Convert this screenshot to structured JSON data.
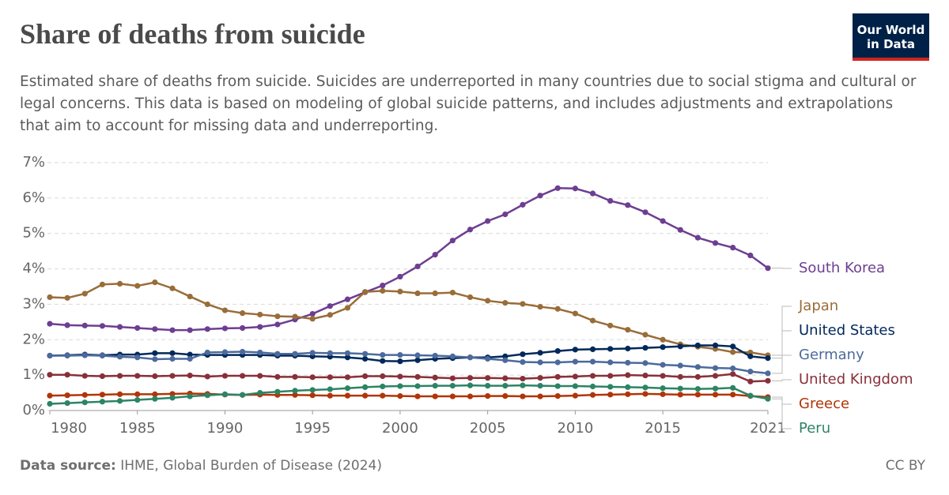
{
  "chart_data": {
    "type": "line",
    "title": "Share of deaths from suicide",
    "subtitle": "Estimated share of deaths from suicide. Suicides are underreported in many countries due to social stigma and cultural or legal concerns. This data is based on modeling of global suicide patterns, and includes adjustments and extrapolations that aim to account for missing data and underreporting.",
    "logo": [
      "Our World",
      "in Data"
    ],
    "source_label": "Data source:",
    "source": "IHME, Global Burden of Disease (2024)",
    "license": "CC BY",
    "x": [
      1980,
      1981,
      1982,
      1983,
      1984,
      1985,
      1986,
      1987,
      1988,
      1989,
      1990,
      1991,
      1992,
      1993,
      1994,
      1995,
      1996,
      1997,
      1998,
      1999,
      2000,
      2001,
      2002,
      2003,
      2004,
      2005,
      2006,
      2007,
      2008,
      2009,
      2010,
      2011,
      2012,
      2013,
      2014,
      2015,
      2016,
      2017,
      2018,
      2019,
      2020,
      2021
    ],
    "xlim": [
      1980,
      2021
    ],
    "xticks": [
      1980,
      1985,
      1990,
      1995,
      2000,
      2005,
      2010,
      2015,
      2021
    ],
    "ylim": [
      0,
      7
    ],
    "yticks": [
      {
        "value": 0,
        "label": "0%"
      },
      {
        "value": 1,
        "label": "1%"
      },
      {
        "value": 2,
        "label": "2%"
      },
      {
        "value": 3,
        "label": "3%"
      },
      {
        "value": 4,
        "label": "4%"
      },
      {
        "value": 5,
        "label": "5%"
      },
      {
        "value": 6,
        "label": "6%"
      },
      {
        "value": 7,
        "label": "7%"
      }
    ],
    "grid": true,
    "series": [
      {
        "name": "South Korea",
        "color": "#6d3e91",
        "values": [
          2.45,
          2.41,
          2.4,
          2.39,
          2.36,
          2.33,
          2.3,
          2.27,
          2.27,
          2.3,
          2.32,
          2.33,
          2.36,
          2.43,
          2.57,
          2.73,
          2.95,
          3.14,
          3.34,
          3.53,
          3.78,
          4.07,
          4.4,
          4.8,
          5.11,
          5.35,
          5.54,
          5.81,
          6.07,
          6.28,
          6.27,
          6.13,
          5.92,
          5.8,
          5.6,
          5.35,
          5.1,
          4.88,
          4.73,
          4.6,
          4.38,
          4.02
        ]
      },
      {
        "name": "Japan",
        "color": "#996d39",
        "values": [
          3.2,
          3.18,
          3.3,
          3.56,
          3.58,
          3.52,
          3.62,
          3.45,
          3.22,
          3.0,
          2.83,
          2.75,
          2.71,
          2.66,
          2.65,
          2.59,
          2.7,
          2.9,
          3.35,
          3.38,
          3.36,
          3.31,
          3.31,
          3.33,
          3.2,
          3.1,
          3.04,
          3.01,
          2.93,
          2.87,
          2.74,
          2.54,
          2.4,
          2.28,
          2.14,
          2.0,
          1.87,
          1.8,
          1.74,
          1.65,
          1.64,
          1.56
        ]
      },
      {
        "name": "United States",
        "color": "#00295b",
        "values": [
          1.55,
          1.56,
          1.58,
          1.56,
          1.58,
          1.58,
          1.62,
          1.62,
          1.58,
          1.57,
          1.57,
          1.57,
          1.57,
          1.55,
          1.55,
          1.53,
          1.52,
          1.5,
          1.46,
          1.4,
          1.39,
          1.42,
          1.46,
          1.48,
          1.5,
          1.5,
          1.53,
          1.59,
          1.63,
          1.68,
          1.72,
          1.73,
          1.74,
          1.75,
          1.77,
          1.79,
          1.81,
          1.84,
          1.84,
          1.81,
          1.53,
          1.48
        ]
      },
      {
        "name": "Germany",
        "color": "#4c6a9c",
        "values": [
          1.55,
          1.55,
          1.56,
          1.55,
          1.52,
          1.5,
          1.45,
          1.46,
          1.46,
          1.64,
          1.65,
          1.66,
          1.64,
          1.6,
          1.6,
          1.63,
          1.62,
          1.62,
          1.6,
          1.57,
          1.57,
          1.56,
          1.55,
          1.53,
          1.5,
          1.46,
          1.42,
          1.37,
          1.36,
          1.36,
          1.38,
          1.38,
          1.36,
          1.35,
          1.34,
          1.29,
          1.27,
          1.23,
          1.2,
          1.19,
          1.1,
          1.05
        ]
      },
      {
        "name": "United Kingdom",
        "color": "#883039",
        "values": [
          1.01,
          1.01,
          0.98,
          0.97,
          0.98,
          0.98,
          0.97,
          0.98,
          0.99,
          0.96,
          0.98,
          0.98,
          0.98,
          0.95,
          0.95,
          0.94,
          0.94,
          0.94,
          0.97,
          0.97,
          0.96,
          0.95,
          0.93,
          0.91,
          0.92,
          0.92,
          0.91,
          0.9,
          0.92,
          0.95,
          0.96,
          0.98,
          0.98,
          1.0,
          0.99,
          0.98,
          0.95,
          0.95,
          0.98,
          1.03,
          0.82,
          0.84
        ]
      },
      {
        "name": "Greece",
        "color": "#b13507",
        "values": [
          0.42,
          0.43,
          0.44,
          0.45,
          0.46,
          0.46,
          0.46,
          0.47,
          0.48,
          0.47,
          0.45,
          0.44,
          0.45,
          0.44,
          0.44,
          0.43,
          0.42,
          0.42,
          0.42,
          0.42,
          0.41,
          0.4,
          0.4,
          0.4,
          0.4,
          0.41,
          0.41,
          0.4,
          0.4,
          0.41,
          0.42,
          0.44,
          0.45,
          0.46,
          0.47,
          0.46,
          0.45,
          0.45,
          0.45,
          0.45,
          0.41,
          0.38
        ]
      },
      {
        "name": "Peru",
        "color": "#2c8465",
        "values": [
          0.19,
          0.21,
          0.23,
          0.25,
          0.27,
          0.3,
          0.33,
          0.36,
          0.4,
          0.43,
          0.46,
          0.44,
          0.5,
          0.53,
          0.56,
          0.58,
          0.6,
          0.63,
          0.66,
          0.68,
          0.69,
          0.69,
          0.7,
          0.7,
          0.71,
          0.7,
          0.7,
          0.71,
          0.7,
          0.69,
          0.69,
          0.68,
          0.67,
          0.66,
          0.65,
          0.63,
          0.62,
          0.61,
          0.62,
          0.64,
          0.42,
          0.33
        ]
      }
    ]
  }
}
